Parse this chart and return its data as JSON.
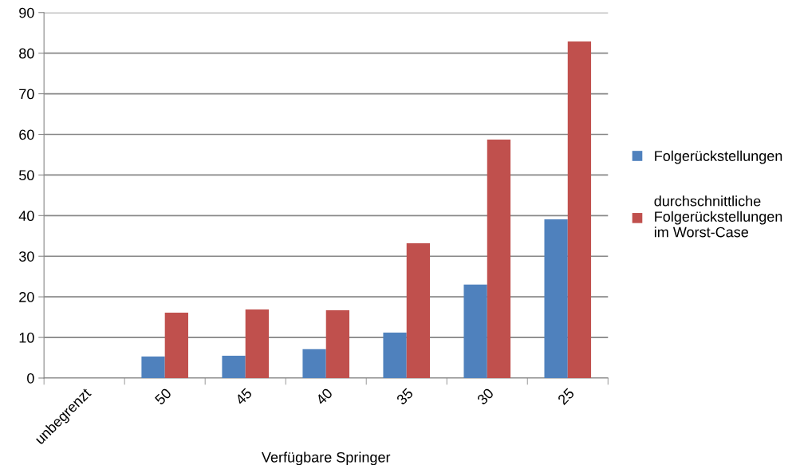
{
  "chart_data": {
    "type": "bar",
    "xlabel": "Verfügbare Springer",
    "categories": [
      "unbegrenzt",
      "50",
      "45",
      "40",
      "35",
      "30",
      "25"
    ],
    "series": [
      {
        "name": "Folgerückstellungen",
        "color": "#4f81bd",
        "values": [
          0,
          5.3,
          5.5,
          7.1,
          11.2,
          23.0,
          39.1
        ]
      },
      {
        "name": "durchschnittliche Folgerückstellungen im Worst-Case",
        "color": "#c0504d",
        "values": [
          0,
          16.1,
          16.9,
          16.7,
          33.2,
          58.7,
          82.9
        ]
      }
    ],
    "ylim": [
      0,
      90
    ],
    "yticks": [
      0,
      10,
      20,
      30,
      40,
      50,
      60,
      70,
      80,
      90
    ],
    "grid": "y",
    "legend": "right"
  }
}
